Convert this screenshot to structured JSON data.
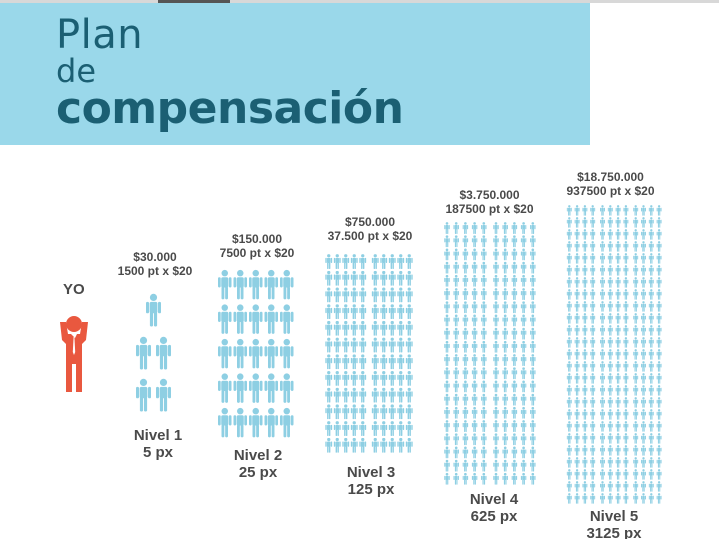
{
  "header": {
    "line1": "Plan",
    "line2": "de",
    "line3": "compensación"
  },
  "you_label": "YO",
  "colors": {
    "banner": "#9ad8ea",
    "title": "#1b5f73",
    "figure": "#8ecfe3",
    "you": "#e9583f",
    "text": "#4a4a4a"
  },
  "icons": {
    "person": "person-icon",
    "you": "businessman-icon"
  },
  "levels": [
    {
      "amount": "$30.000",
      "points": "1500 pt x $20",
      "name": "Nivel 1",
      "count": "5 px"
    },
    {
      "amount": "$150.000",
      "points": "7500 pt x $20",
      "name": "Nivel 2",
      "count": "25 px"
    },
    {
      "amount": "$750.000",
      "points": "37.500 pt x $20",
      "name": "Nivel 3",
      "count": "125 px"
    },
    {
      "amount": "$3.750.000",
      "points": "187500 pt x $20",
      "name": "Nivel 4",
      "count": "625 px"
    },
    {
      "amount": "$18.750.000",
      "points": "937500 pt x $20",
      "name": "Nivel 5",
      "count": "3125 px"
    }
  ]
}
